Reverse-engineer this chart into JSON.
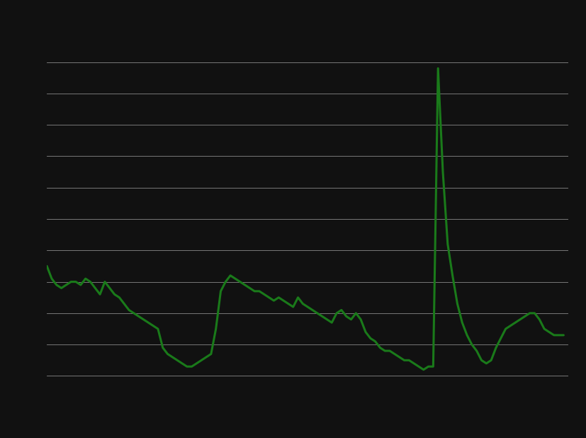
{
  "background_color": "#111111",
  "line_color": "#1a7a1a",
  "grid_color": "#888888",
  "line_width": 2.2,
  "xlim": [
    2000,
    2027
  ],
  "ylim": [
    3.0,
    15.0
  ],
  "yticks": [
    4.0,
    5.0,
    6.0,
    7.0,
    8.0,
    9.0,
    10.0,
    11.0,
    12.0,
    13.0,
    14.0
  ],
  "quarters": [
    2000.0,
    2000.25,
    2000.5,
    2000.75,
    2001.0,
    2001.25,
    2001.5,
    2001.75,
    2002.0,
    2002.25,
    2002.5,
    2002.75,
    2003.0,
    2003.25,
    2003.5,
    2003.75,
    2004.0,
    2004.25,
    2004.5,
    2004.75,
    2005.0,
    2005.25,
    2005.5,
    2005.75,
    2006.0,
    2006.25,
    2006.5,
    2006.75,
    2007.0,
    2007.25,
    2007.5,
    2007.75,
    2008.0,
    2008.25,
    2008.5,
    2008.75,
    2009.0,
    2009.25,
    2009.5,
    2009.75,
    2010.0,
    2010.25,
    2010.5,
    2010.75,
    2011.0,
    2011.25,
    2011.5,
    2011.75,
    2012.0,
    2012.25,
    2012.5,
    2012.75,
    2013.0,
    2013.25,
    2013.5,
    2013.75,
    2014.0,
    2014.25,
    2014.5,
    2014.75,
    2015.0,
    2015.25,
    2015.5,
    2015.75,
    2016.0,
    2016.25,
    2016.5,
    2016.75,
    2017.0,
    2017.25,
    2017.5,
    2017.75,
    2018.0,
    2018.25,
    2018.5,
    2018.75,
    2019.0,
    2019.25,
    2019.5,
    2019.75,
    2020.0,
    2020.25,
    2020.5,
    2020.75,
    2021.0,
    2021.25,
    2021.5,
    2021.75,
    2022.0,
    2022.25,
    2022.5,
    2022.75,
    2023.0,
    2023.25,
    2023.5,
    2023.75,
    2024.0,
    2024.25,
    2024.5,
    2024.75,
    2025.0,
    2025.25,
    2025.5,
    2025.75,
    2026.0,
    2026.25,
    2026.5,
    2026.75
  ],
  "values": [
    7.5,
    7.1,
    6.9,
    6.8,
    6.9,
    7.0,
    7.0,
    6.9,
    7.1,
    7.0,
    6.8,
    6.6,
    7.0,
    6.8,
    6.6,
    6.5,
    6.3,
    6.1,
    6.0,
    5.9,
    5.8,
    5.7,
    5.6,
    5.5,
    4.9,
    4.7,
    4.6,
    4.5,
    4.4,
    4.3,
    4.3,
    4.4,
    4.5,
    4.6,
    4.7,
    5.5,
    6.7,
    7.0,
    7.2,
    7.1,
    7.0,
    6.9,
    6.8,
    6.7,
    6.7,
    6.6,
    6.5,
    6.4,
    6.5,
    6.4,
    6.3,
    6.2,
    6.5,
    6.3,
    6.2,
    6.1,
    6.0,
    5.9,
    5.8,
    5.7,
    6.0,
    6.1,
    5.9,
    5.8,
    6.0,
    5.8,
    5.4,
    5.2,
    5.1,
    4.9,
    4.8,
    4.8,
    4.7,
    4.6,
    4.5,
    4.5,
    4.4,
    4.3,
    4.2,
    4.3,
    4.3,
    13.8,
    10.5,
    8.2,
    7.2,
    6.3,
    5.7,
    5.3,
    5.0,
    4.8,
    4.5,
    4.4,
    4.5,
    4.9,
    5.2,
    5.5,
    5.6,
    5.7,
    5.8,
    5.9,
    6.0,
    6.0,
    5.8,
    5.5,
    5.4,
    5.3,
    5.3,
    5.3
  ]
}
